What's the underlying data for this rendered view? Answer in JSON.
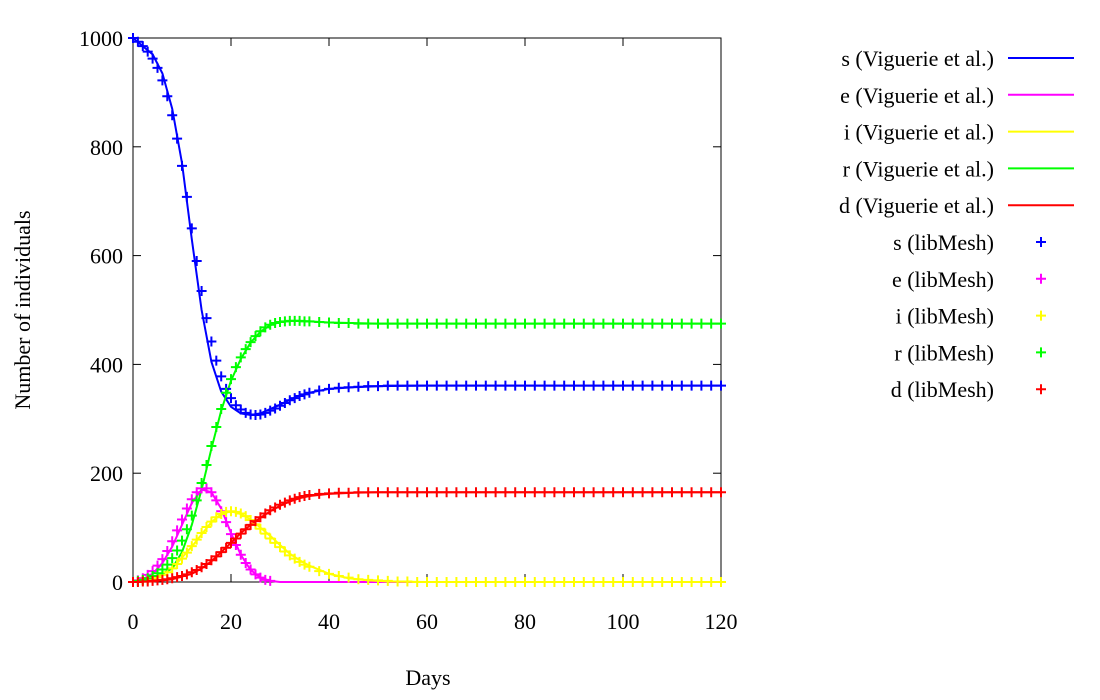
{
  "chart_data": {
    "type": "line",
    "title": "",
    "xlabel": "Days",
    "ylabel": "Number of individuals",
    "xlim": [
      0,
      120
    ],
    "ylim": [
      0,
      1000
    ],
    "x_ticks": [
      0,
      20,
      40,
      60,
      80,
      100,
      120
    ],
    "y_ticks": [
      0,
      200,
      400,
      600,
      800,
      1000
    ],
    "grid": false,
    "legend_position": "outside-top-right",
    "series": [
      {
        "name": "s (Viguerie et al.)",
        "style": "line",
        "color": "#0000ff",
        "x": [
          0,
          2,
          4,
          6,
          8,
          10,
          12,
          14,
          16,
          18,
          20,
          22,
          24,
          26,
          28,
          30,
          32,
          34,
          36,
          40,
          45,
          50,
          60,
          80,
          100,
          120
        ],
        "y": [
          1000,
          985,
          970,
          935,
          870,
          770,
          630,
          500,
          405,
          350,
          322,
          310,
          307,
          310,
          318,
          326,
          335,
          343,
          348,
          355,
          358,
          360,
          361,
          361,
          361,
          361
        ]
      },
      {
        "name": "e (Viguerie et al.)",
        "style": "line",
        "color": "#ff00ff",
        "x": [
          0,
          2,
          4,
          6,
          8,
          10,
          12,
          14,
          16,
          18,
          20,
          22,
          24,
          26,
          28,
          30,
          40,
          60,
          80,
          100,
          120
        ],
        "y": [
          0,
          5,
          15,
          35,
          65,
          105,
          145,
          170,
          165,
          135,
          90,
          50,
          22,
          8,
          2,
          0,
          0,
          0,
          0,
          0,
          0
        ]
      },
      {
        "name": "i (Viguerie et al.)",
        "style": "line",
        "color": "#ffff00",
        "x": [
          0,
          4,
          8,
          12,
          16,
          18,
          20,
          22,
          24,
          26,
          28,
          30,
          32,
          34,
          36,
          40,
          44,
          48,
          52,
          60,
          80,
          100,
          120
        ],
        "y": [
          0,
          5,
          25,
          65,
          110,
          125,
          130,
          125,
          115,
          100,
          85,
          68,
          52,
          40,
          30,
          15,
          7,
          3,
          1,
          0,
          0,
          0,
          0
        ]
      },
      {
        "name": "r (Viguerie et al.)",
        "style": "line",
        "color": "#00ff00",
        "x": [
          0,
          4,
          8,
          10,
          12,
          14,
          16,
          18,
          20,
          22,
          24,
          26,
          28,
          30,
          32,
          34,
          36,
          40,
          50,
          60,
          80,
          100,
          120
        ],
        "y": [
          0,
          5,
          25,
          55,
          105,
          170,
          245,
          315,
          370,
          410,
          440,
          460,
          472,
          478,
          480,
          480,
          479,
          477,
          475,
          475,
          475,
          475,
          475
        ]
      },
      {
        "name": "d (Viguerie et al.)",
        "style": "line",
        "color": "#ff0000",
        "x": [
          0,
          4,
          8,
          12,
          14,
          16,
          18,
          20,
          22,
          24,
          26,
          28,
          30,
          32,
          34,
          36,
          40,
          45,
          50,
          55,
          60,
          80,
          100,
          120
        ],
        "y": [
          0,
          1,
          5,
          15,
          25,
          38,
          55,
          72,
          90,
          105,
          118,
          130,
          140,
          148,
          154,
          158,
          162,
          164,
          165,
          165,
          165,
          165,
          165,
          165
        ]
      },
      {
        "name": "s (libMesh)",
        "style": "points",
        "color": "#0000ff",
        "x": [
          0,
          1,
          2,
          3,
          4,
          5,
          6,
          7,
          8,
          9,
          10,
          11,
          12,
          13,
          14,
          15,
          16,
          17,
          18,
          19,
          20,
          21,
          22,
          23,
          24,
          25,
          26,
          27,
          28,
          29,
          30,
          31,
          32,
          33,
          34,
          35,
          36,
          38,
          40,
          42,
          44,
          46,
          48,
          50,
          52,
          54,
          56,
          58,
          60,
          62,
          64,
          66,
          68,
          70,
          72,
          74,
          76,
          78,
          80,
          82,
          84,
          86,
          88,
          90,
          92,
          94,
          96,
          98,
          100,
          102,
          104,
          106,
          108,
          110,
          112,
          114,
          116,
          118,
          120
        ],
        "y": [
          1000,
          993,
          985,
          975,
          962,
          945,
          922,
          893,
          858,
          815,
          765,
          708,
          650,
          590,
          535,
          485,
          442,
          407,
          378,
          355,
          338,
          325,
          317,
          311,
          308,
          307,
          308,
          311,
          315,
          319,
          324,
          329,
          334,
          338,
          342,
          345,
          348,
          352,
          355,
          357,
          358,
          359,
          360,
          360,
          361,
          361,
          361,
          361,
          361,
          361,
          361,
          361,
          361,
          361,
          361,
          361,
          361,
          361,
          361,
          361,
          361,
          361,
          361,
          361,
          361,
          361,
          361,
          361,
          361,
          361,
          361,
          361,
          361,
          361,
          361,
          361,
          361,
          361,
          361
        ]
      },
      {
        "name": "e (libMesh)",
        "style": "points",
        "color": "#ff00ff",
        "x": [
          0,
          1,
          2,
          3,
          4,
          5,
          6,
          7,
          8,
          9,
          10,
          11,
          12,
          13,
          14,
          15,
          16,
          17,
          18,
          19,
          20,
          21,
          22,
          23,
          24,
          25,
          26,
          27,
          28
        ],
        "y": [
          0,
          3,
          7,
          13,
          20,
          30,
          42,
          57,
          75,
          95,
          115,
          135,
          152,
          165,
          172,
          172,
          165,
          150,
          130,
          110,
          88,
          68,
          50,
          35,
          23,
          14,
          8,
          4,
          2
        ]
      },
      {
        "name": "i (libMesh)",
        "style": "points",
        "color": "#ffff00",
        "x": [
          0,
          1,
          2,
          3,
          4,
          5,
          6,
          7,
          8,
          9,
          10,
          11,
          12,
          13,
          14,
          15,
          16,
          17,
          18,
          19,
          20,
          21,
          22,
          23,
          24,
          25,
          26,
          27,
          28,
          29,
          30,
          31,
          32,
          33,
          34,
          35,
          36,
          38,
          40,
          42,
          44,
          46,
          48,
          50,
          52,
          54,
          56,
          58,
          60,
          62,
          64,
          66,
          68,
          70,
          72,
          74,
          76,
          78,
          80,
          82,
          84,
          86,
          88,
          90,
          92,
          94,
          96,
          98,
          100,
          102,
          104,
          106,
          108,
          110,
          112,
          114,
          116,
          118,
          120
        ],
        "y": [
          0,
          1,
          2,
          4,
          6,
          9,
          13,
          18,
          25,
          33,
          43,
          54,
          66,
          78,
          90,
          101,
          111,
          119,
          125,
          129,
          130,
          129,
          126,
          121,
          114,
          106,
          98,
          89,
          80,
          72,
          64,
          56,
          49,
          43,
          37,
          32,
          28,
          20,
          15,
          11,
          8,
          5,
          4,
          3,
          2,
          1,
          1,
          0,
          0,
          0,
          0,
          0,
          0,
          0,
          0,
          0,
          0,
          0,
          0,
          0,
          0,
          0,
          0,
          0,
          0,
          0,
          0,
          0,
          0,
          0,
          0,
          0,
          0,
          0,
          0,
          0,
          0,
          0,
          0
        ]
      },
      {
        "name": "r (libMesh)",
        "style": "points",
        "color": "#00ff00",
        "x": [
          0,
          1,
          2,
          3,
          4,
          5,
          6,
          7,
          8,
          9,
          10,
          11,
          12,
          13,
          14,
          15,
          16,
          17,
          18,
          19,
          20,
          21,
          22,
          23,
          24,
          25,
          26,
          27,
          28,
          29,
          30,
          31,
          32,
          33,
          34,
          35,
          36,
          38,
          40,
          42,
          44,
          46,
          48,
          50,
          52,
          54,
          56,
          58,
          60,
          62,
          64,
          66,
          68,
          70,
          72,
          74,
          76,
          78,
          80,
          82,
          84,
          86,
          88,
          90,
          92,
          94,
          96,
          98,
          100,
          102,
          104,
          106,
          108,
          110,
          112,
          114,
          116,
          118,
          120
        ],
        "y": [
          0,
          2,
          4,
          7,
          11,
          16,
          23,
          32,
          44,
          58,
          76,
          97,
          122,
          150,
          182,
          215,
          250,
          285,
          318,
          348,
          373,
          395,
          413,
          428,
          441,
          452,
          461,
          468,
          473,
          476,
          478,
          479,
          480,
          480,
          480,
          479,
          479,
          478,
          477,
          476,
          476,
          475,
          475,
          475,
          475,
          475,
          475,
          475,
          475,
          475,
          475,
          475,
          475,
          475,
          475,
          475,
          475,
          475,
          475,
          475,
          475,
          475,
          475,
          475,
          475,
          475,
          475,
          475,
          475,
          475,
          475,
          475,
          475,
          475,
          475,
          475,
          475,
          475,
          475
        ]
      },
      {
        "name": "d (libMesh)",
        "style": "points",
        "color": "#ff0000",
        "x": [
          0,
          1,
          2,
          3,
          4,
          5,
          6,
          7,
          8,
          9,
          10,
          11,
          12,
          13,
          14,
          15,
          16,
          17,
          18,
          19,
          20,
          21,
          22,
          23,
          24,
          25,
          26,
          27,
          28,
          29,
          30,
          31,
          32,
          33,
          34,
          35,
          36,
          38,
          40,
          42,
          44,
          46,
          48,
          50,
          52,
          54,
          56,
          58,
          60,
          62,
          64,
          66,
          68,
          70,
          72,
          74,
          76,
          78,
          80,
          82,
          84,
          86,
          88,
          90,
          92,
          94,
          96,
          98,
          100,
          102,
          104,
          106,
          108,
          110,
          112,
          114,
          116,
          118,
          120
        ],
        "y": [
          0,
          0,
          1,
          1,
          2,
          3,
          4,
          5,
          7,
          9,
          11,
          14,
          18,
          22,
          27,
          33,
          40,
          47,
          55,
          63,
          72,
          80,
          89,
          97,
          105,
          112,
          119,
          126,
          132,
          137,
          142,
          146,
          150,
          153,
          156,
          158,
          160,
          162,
          163,
          164,
          164,
          165,
          165,
          165,
          165,
          165,
          165,
          165,
          165,
          165,
          165,
          165,
          165,
          165,
          165,
          165,
          165,
          165,
          165,
          165,
          165,
          165,
          165,
          165,
          165,
          165,
          165,
          165,
          165,
          165,
          165,
          165,
          165,
          165,
          165,
          165,
          165,
          165,
          165
        ]
      }
    ]
  }
}
